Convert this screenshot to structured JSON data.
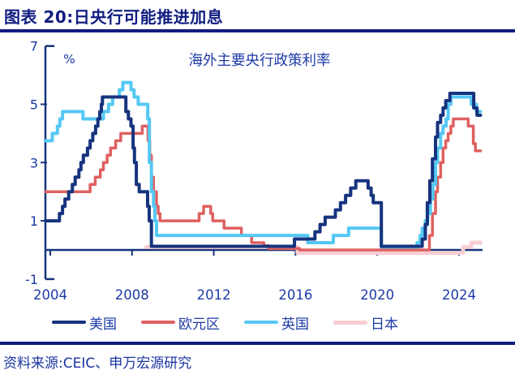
{
  "page": {
    "title": "图表 20:日央行可能推进加息",
    "source": "资料来源:CEIC、申万宏源研究"
  },
  "colors": {
    "title_navy": "#111D80",
    "text_blue": "#1C3AA6",
    "axis_navy": "#16337E"
  },
  "chart_data": {
    "type": "line",
    "title": "海外主要央行政策利率",
    "unit_label": "%",
    "step": true,
    "grid": false,
    "legend_position": "bottom",
    "xlim": [
      2003.76,
      2025.15
    ],
    "ylim": [
      -1,
      7
    ],
    "x_ticks": [
      2004,
      2008,
      2012,
      2016,
      2020,
      2024
    ],
    "y_ticks": [
      7,
      5,
      3,
      1,
      -1
    ],
    "series": [
      {
        "name": "美国",
        "color": "#16337E",
        "width": 4,
        "points": [
          [
            2003.76,
            1.0
          ],
          [
            2004.45,
            1.25
          ],
          [
            2004.6,
            1.5
          ],
          [
            2004.72,
            1.75
          ],
          [
            2004.9,
            2.0
          ],
          [
            2005.08,
            2.25
          ],
          [
            2005.22,
            2.5
          ],
          [
            2005.4,
            2.75
          ],
          [
            2005.5,
            3.0
          ],
          [
            2005.62,
            3.25
          ],
          [
            2005.82,
            3.5
          ],
          [
            2005.95,
            3.75
          ],
          [
            2006.08,
            4.0
          ],
          [
            2006.22,
            4.25
          ],
          [
            2006.33,
            4.5
          ],
          [
            2006.42,
            4.75
          ],
          [
            2006.5,
            5.0
          ],
          [
            2006.55,
            5.25
          ],
          [
            2007.7,
            4.75
          ],
          [
            2007.82,
            4.5
          ],
          [
            2007.95,
            4.25
          ],
          [
            2008.05,
            3.5
          ],
          [
            2008.12,
            3.0
          ],
          [
            2008.21,
            2.25
          ],
          [
            2008.35,
            2.0
          ],
          [
            2008.76,
            1.5
          ],
          [
            2008.84,
            1.0
          ],
          [
            2008.95,
            0.125
          ],
          [
            2015.95,
            0.375
          ],
          [
            2016.95,
            0.625
          ],
          [
            2017.2,
            0.875
          ],
          [
            2017.45,
            1.125
          ],
          [
            2017.95,
            1.375
          ],
          [
            2018.2,
            1.625
          ],
          [
            2018.45,
            1.875
          ],
          [
            2018.7,
            2.125
          ],
          [
            2018.95,
            2.375
          ],
          [
            2019.55,
            2.125
          ],
          [
            2019.7,
            1.875
          ],
          [
            2019.8,
            1.625
          ],
          [
            2020.2,
            0.125
          ],
          [
            2022.2,
            0.375
          ],
          [
            2022.35,
            0.875
          ],
          [
            2022.45,
            1.625
          ],
          [
            2022.57,
            2.375
          ],
          [
            2022.7,
            3.125
          ],
          [
            2022.85,
            3.875
          ],
          [
            2022.95,
            4.375
          ],
          [
            2023.1,
            4.625
          ],
          [
            2023.22,
            4.875
          ],
          [
            2023.35,
            5.125
          ],
          [
            2023.55,
            5.375
          ],
          [
            2024.72,
            4.875
          ],
          [
            2024.88,
            4.625
          ],
          [
            2025.05,
            4.625
          ]
        ]
      },
      {
        "name": "欧元区",
        "color": "#E06060",
        "width": 3.5,
        "points": [
          [
            2003.76,
            2.0
          ],
          [
            2005.95,
            2.25
          ],
          [
            2006.2,
            2.5
          ],
          [
            2006.45,
            2.75
          ],
          [
            2006.6,
            3.0
          ],
          [
            2006.78,
            3.25
          ],
          [
            2006.95,
            3.5
          ],
          [
            2007.2,
            3.75
          ],
          [
            2007.45,
            4.0
          ],
          [
            2008.5,
            4.25
          ],
          [
            2008.78,
            3.75
          ],
          [
            2008.87,
            3.25
          ],
          [
            2008.95,
            2.5
          ],
          [
            2009.05,
            2.0
          ],
          [
            2009.2,
            1.5
          ],
          [
            2009.28,
            1.25
          ],
          [
            2009.37,
            1.0
          ],
          [
            2011.28,
            1.25
          ],
          [
            2011.5,
            1.5
          ],
          [
            2011.85,
            1.25
          ],
          [
            2011.95,
            1.0
          ],
          [
            2012.5,
            0.75
          ],
          [
            2013.35,
            0.5
          ],
          [
            2013.85,
            0.25
          ],
          [
            2014.45,
            0.15
          ],
          [
            2014.68,
            0.05
          ],
          [
            2016.2,
            0.0
          ],
          [
            2022.55,
            0.5
          ],
          [
            2022.7,
            1.25
          ],
          [
            2022.85,
            2.0
          ],
          [
            2022.95,
            2.5
          ],
          [
            2023.1,
            3.0
          ],
          [
            2023.22,
            3.5
          ],
          [
            2023.35,
            3.75
          ],
          [
            2023.47,
            4.0
          ],
          [
            2023.6,
            4.25
          ],
          [
            2023.72,
            4.5
          ],
          [
            2024.45,
            4.25
          ],
          [
            2024.7,
            3.65
          ],
          [
            2024.8,
            3.4
          ],
          [
            2025.05,
            3.4
          ]
        ]
      },
      {
        "name": "英国",
        "color": "#55C8F3",
        "width": 4,
        "points": [
          [
            2003.76,
            3.75
          ],
          [
            2004.1,
            4.0
          ],
          [
            2004.35,
            4.25
          ],
          [
            2004.47,
            4.5
          ],
          [
            2004.6,
            4.75
          ],
          [
            2005.6,
            4.5
          ],
          [
            2006.6,
            4.75
          ],
          [
            2006.85,
            5.0
          ],
          [
            2007.05,
            5.25
          ],
          [
            2007.38,
            5.5
          ],
          [
            2007.55,
            5.75
          ],
          [
            2007.95,
            5.5
          ],
          [
            2008.1,
            5.25
          ],
          [
            2008.3,
            5.0
          ],
          [
            2008.77,
            4.5
          ],
          [
            2008.85,
            3.0
          ],
          [
            2008.95,
            2.0
          ],
          [
            2009.05,
            1.5
          ],
          [
            2009.12,
            1.0
          ],
          [
            2009.2,
            0.5
          ],
          [
            2016.6,
            0.25
          ],
          [
            2017.85,
            0.5
          ],
          [
            2018.6,
            0.75
          ],
          [
            2020.2,
            0.1
          ],
          [
            2021.95,
            0.25
          ],
          [
            2022.1,
            0.5
          ],
          [
            2022.2,
            0.75
          ],
          [
            2022.35,
            1.0
          ],
          [
            2022.47,
            1.25
          ],
          [
            2022.6,
            1.75
          ],
          [
            2022.72,
            2.25
          ],
          [
            2022.85,
            3.0
          ],
          [
            2022.95,
            3.5
          ],
          [
            2023.1,
            4.0
          ],
          [
            2023.22,
            4.25
          ],
          [
            2023.37,
            4.5
          ],
          [
            2023.47,
            5.0
          ],
          [
            2023.6,
            5.25
          ],
          [
            2024.6,
            5.0
          ],
          [
            2024.85,
            4.75
          ],
          [
            2025.05,
            4.75
          ]
        ]
      },
      {
        "name": "日本",
        "color": "#F7CFD3",
        "width": 5,
        "points": [
          [
            2008.7,
            0.1
          ],
          [
            2016.1,
            -0.1
          ],
          [
            2024.2,
            0.1
          ],
          [
            2024.6,
            0.25
          ],
          [
            2025.05,
            0.25
          ]
        ]
      }
    ]
  }
}
